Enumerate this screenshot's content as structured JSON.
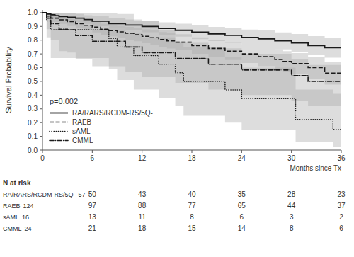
{
  "chart_data": {
    "type": "step",
    "ylabel": "Survival Probability",
    "xlabel": "Months since Tx",
    "annotations": [
      {
        "text": "p=0.002"
      }
    ],
    "color": "#1a1a1a",
    "legend": "lower left",
    "xlim": [
      0,
      36
    ],
    "ylim": [
      0.0,
      1.02
    ],
    "xticks": [
      0,
      6,
      12,
      18,
      24,
      30,
      36
    ],
    "yticks": [
      {
        "value": 0.0,
        "label": "0.0"
      },
      0.1,
      0.2,
      0.3,
      0.4,
      0.5,
      0.6,
      0.7,
      0.8,
      0.9,
      {
        "value": 1.0,
        "label": "1.0"
      }
    ],
    "series": [
      {
        "name": "RA/RARS/RCDM-RS/5Q-",
        "line_style": "solid",
        "x": [
          0,
          0.5,
          1.0,
          1.5,
          2.0,
          3.0,
          4.0,
          5.0,
          6.0,
          8.0,
          10.0,
          12.0,
          14.0,
          16.0,
          18.0,
          20.0,
          22.0,
          24.0,
          26.0,
          28.0,
          30.0,
          32.0,
          34.0,
          36.0
        ],
        "values": [
          1.0,
          0.99,
          0.985,
          0.978,
          0.972,
          0.966,
          0.96,
          0.95,
          0.938,
          0.92,
          0.91,
          0.9,
          0.885,
          0.872,
          0.858,
          0.845,
          0.835,
          0.82,
          0.81,
          0.795,
          0.78,
          0.76,
          0.745,
          0.73
        ],
        "lower": [
          1.0,
          0.97,
          0.96,
          0.95,
          0.945,
          0.938,
          0.93,
          0.918,
          0.902,
          0.882,
          0.87,
          0.858,
          0.84,
          0.825,
          0.808,
          0.793,
          0.78,
          0.763,
          0.75,
          0.733,
          0.715,
          0.69,
          0.672,
          0.653
        ],
        "upper": [
          1.0,
          1.0,
          1.0,
          1.0,
          1.0,
          0.994,
          0.99,
          0.982,
          0.974,
          0.958,
          0.95,
          0.942,
          0.93,
          0.919,
          0.908,
          0.897,
          0.89,
          0.877,
          0.87,
          0.857,
          0.845,
          0.83,
          0.818,
          0.807
        ]
      },
      {
        "name": "RAEB",
        "line_style": "dashed",
        "x": [
          0,
          0.5,
          1.0,
          2.0,
          3.0,
          4.0,
          5.0,
          6.0,
          7.0,
          8.0,
          9.0,
          10.0,
          11.0,
          12.0,
          13.0,
          14.0,
          15.0,
          16.0,
          18.0,
          20.0,
          22.0,
          24.0,
          26.0,
          28.0,
          29.0,
          30.0,
          32.0,
          34.0,
          36.0
        ],
        "values": [
          1.0,
          0.975,
          0.96,
          0.948,
          0.935,
          0.92,
          0.908,
          0.895,
          0.88,
          0.87,
          0.86,
          0.85,
          0.84,
          0.828,
          0.818,
          0.805,
          0.795,
          0.785,
          0.76,
          0.74,
          0.72,
          0.7,
          0.68,
          0.66,
          0.645,
          0.63,
          0.6,
          0.56,
          0.5
        ],
        "lower": [
          1.0,
          0.95,
          0.933,
          0.918,
          0.903,
          0.886,
          0.872,
          0.857,
          0.84,
          0.828,
          0.816,
          0.804,
          0.792,
          0.778,
          0.766,
          0.751,
          0.739,
          0.727,
          0.7,
          0.678,
          0.655,
          0.633,
          0.61,
          0.587,
          0.57,
          0.554,
          0.52,
          0.476,
          0.41
        ],
        "upper": [
          1.0,
          1.0,
          0.987,
          0.978,
          0.967,
          0.954,
          0.944,
          0.933,
          0.92,
          0.912,
          0.904,
          0.896,
          0.888,
          0.878,
          0.87,
          0.859,
          0.851,
          0.843,
          0.82,
          0.802,
          0.785,
          0.767,
          0.75,
          0.733,
          0.72,
          0.706,
          0.68,
          0.644,
          0.59
        ]
      },
      {
        "name": "sAML",
        "line_style": "dotted",
        "x": [
          0,
          0.5,
          1.0,
          2.0,
          3.0,
          4.0,
          5.0,
          6.0,
          7.0,
          8.0,
          9.0,
          10.0,
          11.0,
          12.0,
          13.0,
          14.0,
          15.0,
          16.0,
          17.0,
          18.0,
          19.0,
          20.0,
          22.0,
          24.0,
          26.0,
          28.0,
          30.0,
          30.5,
          31.0,
          32.0,
          34.0,
          35.0,
          36.0
        ],
        "values": [
          1.0,
          0.94,
          0.875,
          0.875,
          0.875,
          0.875,
          0.875,
          0.875,
          0.875,
          0.813,
          0.75,
          0.75,
          0.688,
          0.688,
          0.688,
          0.625,
          0.625,
          0.563,
          0.5,
          0.5,
          0.5,
          0.5,
          0.438,
          0.375,
          0.375,
          0.375,
          0.375,
          0.222,
          0.222,
          0.222,
          0.222,
          0.15,
          0.15
        ],
        "lower": [
          1.0,
          0.82,
          0.67,
          0.67,
          0.67,
          0.67,
          0.67,
          0.67,
          0.67,
          0.59,
          0.51,
          0.51,
          0.44,
          0.44,
          0.44,
          0.38,
          0.38,
          0.32,
          0.25,
          0.25,
          0.25,
          0.25,
          0.2,
          0.15,
          0.15,
          0.15,
          0.15,
          0.06,
          0.06,
          0.06,
          0.06,
          0.02,
          0.02
        ],
        "upper": [
          1.0,
          1.0,
          1.0,
          1.0,
          1.0,
          1.0,
          1.0,
          1.0,
          1.0,
          1.0,
          0.99,
          0.99,
          0.94,
          0.94,
          0.94,
          0.87,
          0.87,
          0.79,
          0.75,
          0.75,
          0.75,
          0.75,
          0.68,
          0.6,
          0.6,
          0.6,
          0.6,
          0.44,
          0.44,
          0.44,
          0.44,
          0.41,
          0.41
        ]
      },
      {
        "name": "CMML",
        "line_style": "dashdot",
        "x": [
          0,
          0.5,
          1.0,
          2.0,
          3.0,
          4.0,
          5.0,
          6.0,
          7.0,
          8.0,
          9.0,
          10.0,
          12.0,
          14.0,
          16.0,
          18.0,
          20.0,
          22.0,
          24.0,
          26.0,
          28.0,
          30.0,
          32.0,
          34.0,
          36.0
        ],
        "values": [
          1.0,
          0.96,
          0.92,
          0.88,
          0.875,
          0.833,
          0.833,
          0.792,
          0.792,
          0.792,
          0.792,
          0.75,
          0.708,
          0.708,
          0.667,
          0.667,
          0.625,
          0.625,
          0.583,
          0.583,
          0.583,
          0.542,
          0.5,
          0.5,
          0.5
        ],
        "lower": [
          1.0,
          0.88,
          0.8,
          0.72,
          0.71,
          0.66,
          0.66,
          0.61,
          0.61,
          0.61,
          0.61,
          0.57,
          0.53,
          0.53,
          0.49,
          0.49,
          0.44,
          0.44,
          0.4,
          0.4,
          0.4,
          0.36,
          0.32,
          0.32,
          0.32
        ],
        "upper": [
          1.0,
          1.0,
          1.0,
          0.96,
          0.95,
          0.91,
          0.91,
          0.88,
          0.88,
          0.88,
          0.88,
          0.85,
          0.82,
          0.82,
          0.78,
          0.78,
          0.74,
          0.74,
          0.7,
          0.7,
          0.7,
          0.66,
          0.62,
          0.62,
          0.62
        ]
      }
    ],
    "at_risk": {
      "title": "N at risk",
      "times": [
        0,
        6,
        12,
        18,
        24,
        30,
        36
      ],
      "rows": [
        {
          "label": "RA/RARS/RCDM-RS/5Q-",
          "values": [
            57,
            50,
            43,
            40,
            35,
            28,
            23
          ]
        },
        {
          "label": "RAEB",
          "values": [
            124,
            97,
            88,
            77,
            65,
            44,
            37
          ]
        },
        {
          "label": "sAML",
          "values": [
            16,
            13,
            11,
            8,
            6,
            3,
            2
          ]
        },
        {
          "label": "CMML",
          "values": [
            24,
            21,
            18,
            15,
            14,
            8,
            6
          ]
        }
      ]
    }
  }
}
